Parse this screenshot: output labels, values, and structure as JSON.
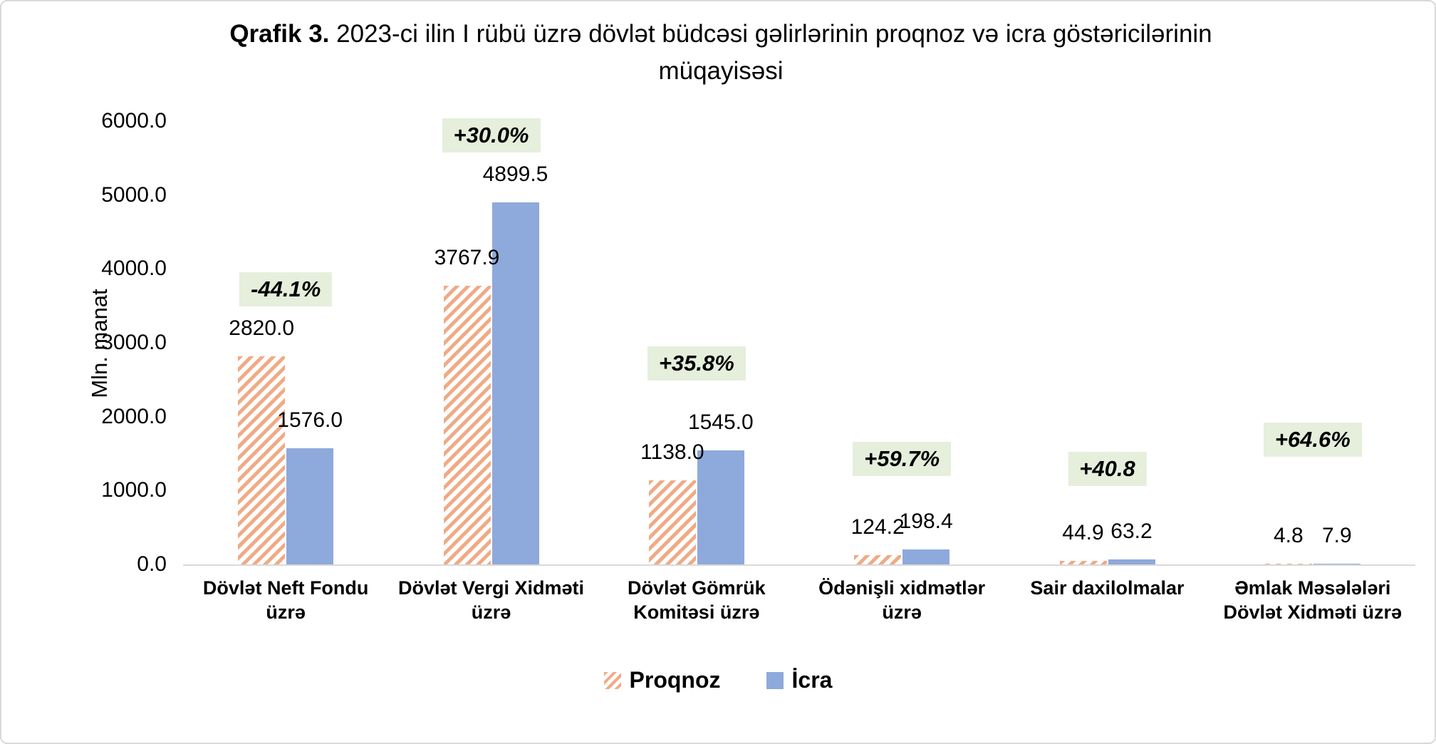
{
  "title": {
    "prefix": "Qrafik 3.",
    "rest": "2023-ci ilin I rübü  üzrə dövlət büdcəsi gəlirlərinin proqnoz və icra göstəricilərinin müqayisəsi"
  },
  "chart_data": {
    "type": "bar",
    "title": "Qrafik 3. 2023-ci ilin I rübü üzrə dövlət büdcəsi gəlirlərinin proqnoz və icra göstəricilərinin müqayisəsi",
    "xlabel": "",
    "ylabel": "Mln. manat",
    "ylim": [
      0,
      6000
    ],
    "ytick_step": 1000,
    "yticks": [
      "6000.0",
      "5000.0",
      "4000.0",
      "3000.0",
      "2000.0",
      "1000.0",
      "0.0"
    ],
    "grid": false,
    "legend_position": "bottom",
    "categories": [
      "Dövlət Neft Fondu üzrə",
      "Dövlət Vergi Xidməti üzrə",
      "Dövlət Gömrük Komitəsi üzrə",
      "Ödənişli xidmətlər üzrə",
      "Sair daxilolmalar",
      "Əmlak Məsələləri Dövlət Xidməti üzrə"
    ],
    "series": [
      {
        "name": "Proqnoz",
        "style": "hatched-orange",
        "values": [
          2820.0,
          3767.9,
          1138.0,
          124.2,
          44.9,
          4.8
        ],
        "labels": [
          "2820.0",
          "3767.9",
          "1138.0",
          "124.2",
          "44.9",
          "4.8"
        ]
      },
      {
        "name": "İcra",
        "style": "solid-blue",
        "values": [
          1576.0,
          4899.5,
          1545.0,
          198.4,
          63.2,
          7.9
        ],
        "labels": [
          "1576.0",
          "4899.5",
          "1545.0",
          "198.4",
          "63.2",
          "7.9"
        ]
      }
    ],
    "change_badges": [
      "-44.1%",
      "+30.0%",
      "+35.8%",
      "+59.7%",
      "+40.8",
      "+64.6%"
    ]
  },
  "colors": {
    "bar_icra": "#8EA9DB",
    "bar_proqnoz_stripe": "#F0AA85",
    "badge_bg": "#E5EFDC",
    "badge_text": "#000000",
    "axis_line": "#D9D9D9",
    "border": "#D9D9D9"
  }
}
